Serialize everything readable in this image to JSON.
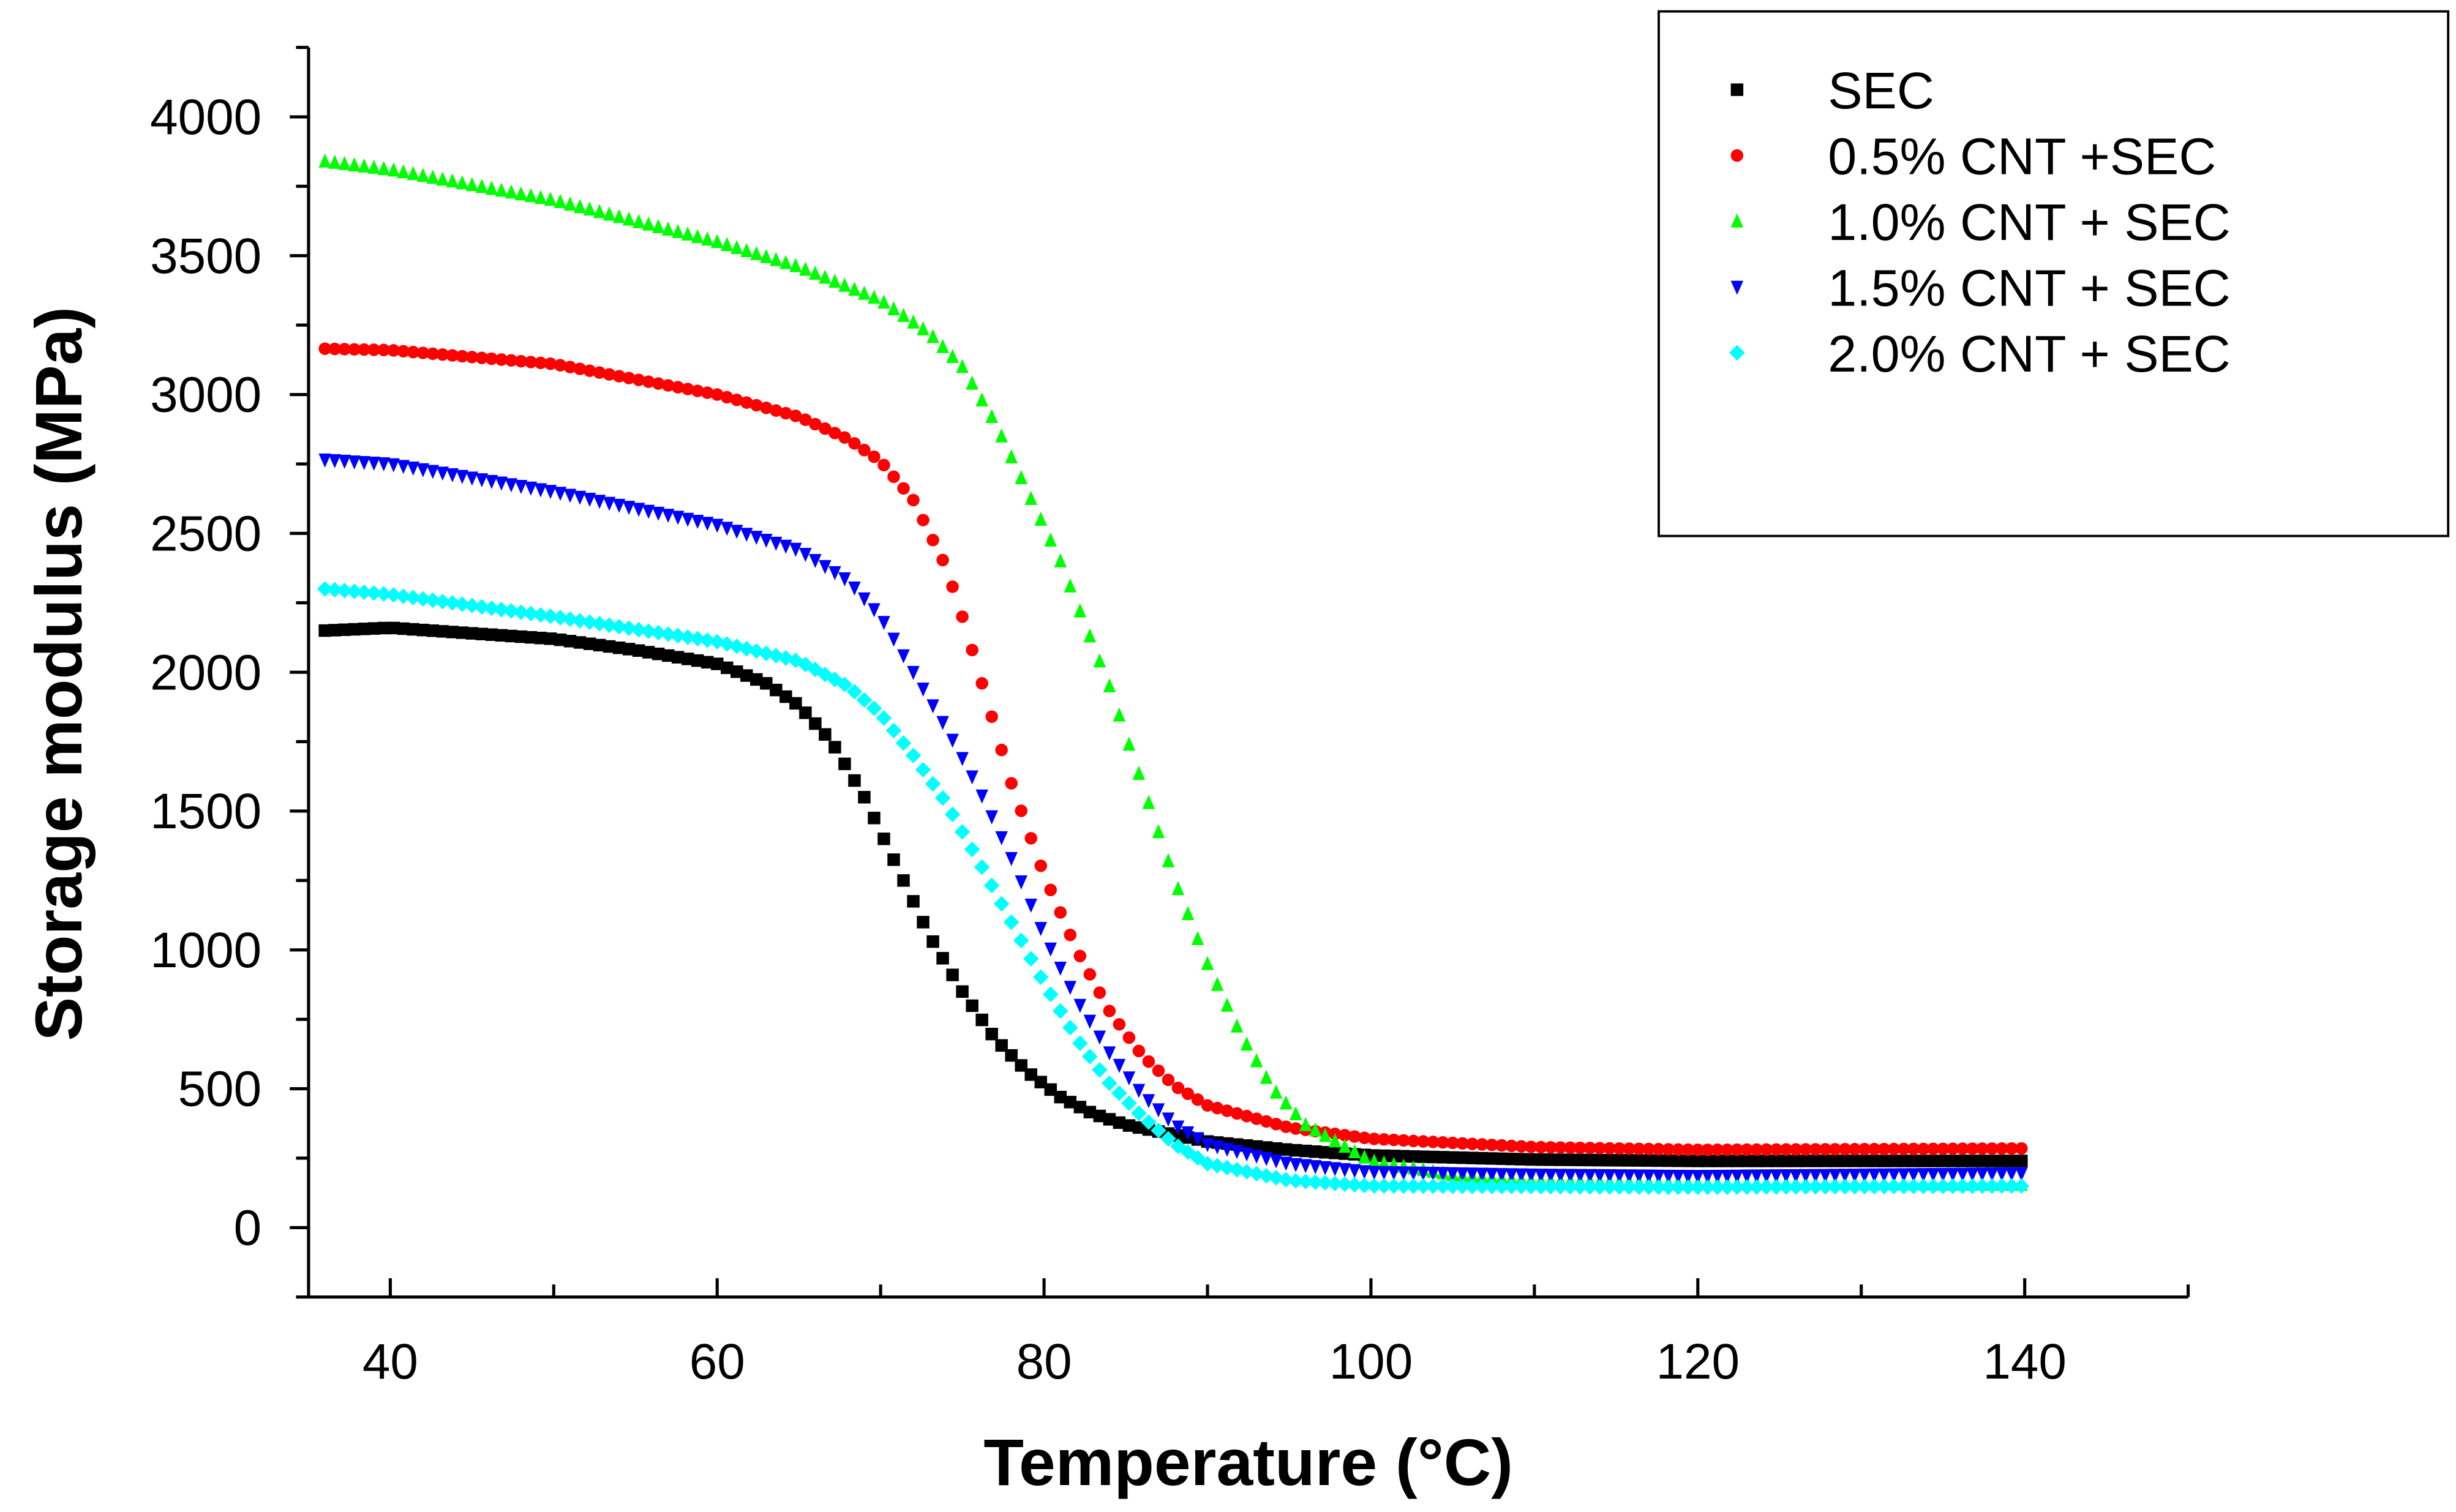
{
  "chart_data": {
    "type": "scatter",
    "title": "",
    "xlabel": "Temperature (°C)",
    "ylabel": "Storage modulus (MPa)",
    "xlim": [
      35,
      150
    ],
    "ylim": [
      -250,
      4250
    ],
    "xticks": [
      "40",
      "60",
      "80",
      "100",
      "120",
      "140"
    ],
    "xtick_values": [
      40,
      60,
      80,
      100,
      120,
      140
    ],
    "yticks": [
      "0",
      "500",
      "1000",
      "1500",
      "2000",
      "2500",
      "3000",
      "3500",
      "4000"
    ],
    "ytick_values": [
      0,
      500,
      1000,
      1500,
      2000,
      2500,
      3000,
      3500,
      4000
    ],
    "grid": false,
    "legend_position": "top-right",
    "series": [
      {
        "name": "SEC",
        "color": "#000000",
        "marker": "square",
        "points": [
          [
            36,
            2150
          ],
          [
            40,
            2160
          ],
          [
            50,
            2120
          ],
          [
            55,
            2080
          ],
          [
            60,
            2030
          ],
          [
            63,
            1960
          ],
          [
            65,
            1880
          ],
          [
            67,
            1750
          ],
          [
            69,
            1550
          ],
          [
            71,
            1300
          ],
          [
            73,
            1050
          ],
          [
            75,
            850
          ],
          [
            77,
            680
          ],
          [
            79,
            560
          ],
          [
            81,
            470
          ],
          [
            83,
            410
          ],
          [
            85,
            370
          ],
          [
            90,
            310
          ],
          [
            95,
            280
          ],
          [
            100,
            260
          ],
          [
            110,
            245
          ],
          [
            120,
            240
          ],
          [
            140,
            240
          ]
        ]
      },
      {
        "name": "0.5% CNT +SEC",
        "color": "#ff0000",
        "marker": "circle",
        "points": [
          [
            36,
            3165
          ],
          [
            40,
            3160
          ],
          [
            50,
            3110
          ],
          [
            60,
            3000
          ],
          [
            65,
            2920
          ],
          [
            68,
            2840
          ],
          [
            70,
            2760
          ],
          [
            72,
            2620
          ],
          [
            74,
            2380
          ],
          [
            75,
            2200
          ],
          [
            76,
            2000
          ],
          [
            77,
            1800
          ],
          [
            78,
            1600
          ],
          [
            80,
            1270
          ],
          [
            82,
            1000
          ],
          [
            84,
            780
          ],
          [
            86,
            620
          ],
          [
            88,
            510
          ],
          [
            90,
            440
          ],
          [
            95,
            360
          ],
          [
            100,
            320
          ],
          [
            110,
            290
          ],
          [
            120,
            280
          ],
          [
            140,
            285
          ]
        ]
      },
      {
        "name": "1.0% CNT + SEC",
        "color": "#00ff00",
        "marker": "triangle-up",
        "points": [
          [
            36,
            3840
          ],
          [
            40,
            3810
          ],
          [
            50,
            3700
          ],
          [
            60,
            3550
          ],
          [
            65,
            3460
          ],
          [
            70,
            3340
          ],
          [
            73,
            3220
          ],
          [
            75,
            3100
          ],
          [
            77,
            2900
          ],
          [
            79,
            2650
          ],
          [
            81,
            2400
          ],
          [
            82,
            2250
          ],
          [
            84,
            1950
          ],
          [
            86,
            1600
          ],
          [
            88,
            1250
          ],
          [
            90,
            950
          ],
          [
            92,
            700
          ],
          [
            94,
            500
          ],
          [
            96,
            370
          ],
          [
            100,
            240
          ],
          [
            105,
            190
          ],
          [
            110,
            170
          ],
          [
            120,
            160
          ],
          [
            140,
            155
          ]
        ]
      },
      {
        "name": "1.5% CNT + SEC",
        "color": "#0000ff",
        "marker": "triangle-down",
        "points": [
          [
            36,
            2765
          ],
          [
            40,
            2750
          ],
          [
            50,
            2650
          ],
          [
            60,
            2530
          ],
          [
            65,
            2440
          ],
          [
            68,
            2330
          ],
          [
            70,
            2200
          ],
          [
            72,
            2000
          ],
          [
            74,
            1800
          ],
          [
            76,
            1580
          ],
          [
            78,
            1330
          ],
          [
            80,
            1050
          ],
          [
            82,
            820
          ],
          [
            84,
            630
          ],
          [
            86,
            480
          ],
          [
            88,
            370
          ],
          [
            90,
            300
          ],
          [
            95,
            230
          ],
          [
            100,
            200
          ],
          [
            110,
            190
          ],
          [
            120,
            185
          ],
          [
            140,
            195
          ]
        ]
      },
      {
        "name": "2.0% CNT + SEC",
        "color": "#00ffff",
        "marker": "diamond",
        "points": [
          [
            36,
            2300
          ],
          [
            40,
            2280
          ],
          [
            50,
            2200
          ],
          [
            60,
            2110
          ],
          [
            65,
            2040
          ],
          [
            68,
            1950
          ],
          [
            70,
            1850
          ],
          [
            72,
            1700
          ],
          [
            74,
            1530
          ],
          [
            76,
            1320
          ],
          [
            78,
            1100
          ],
          [
            80,
            880
          ],
          [
            82,
            680
          ],
          [
            84,
            520
          ],
          [
            86,
            400
          ],
          [
            88,
            300
          ],
          [
            90,
            230
          ],
          [
            95,
            170
          ],
          [
            100,
            150
          ],
          [
            120,
            145
          ],
          [
            140,
            150
          ]
        ]
      }
    ]
  }
}
